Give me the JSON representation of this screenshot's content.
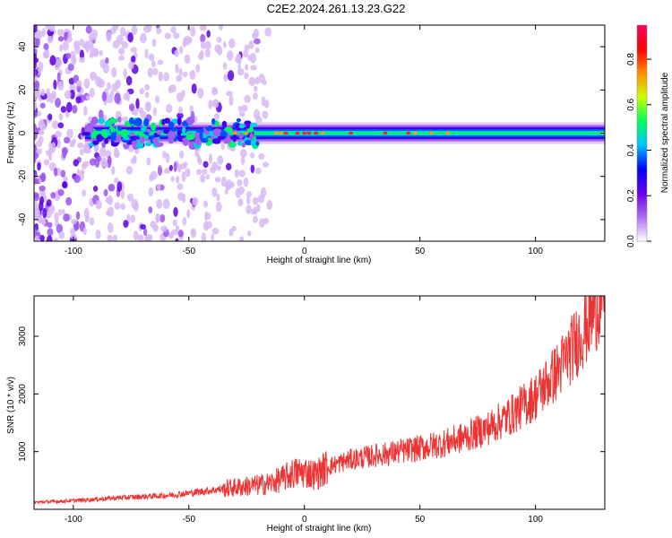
{
  "title": "C2E2.2024.261.13.23.G22",
  "chart_data": [
    {
      "type": "heatmap",
      "xlabel": "Height of straight line (km)",
      "ylabel": "Frequency (Hz)",
      "xlim": [
        -117,
        130
      ],
      "ylim": [
        -50,
        50
      ],
      "xticks": [
        -100,
        -50,
        0,
        50,
        100
      ],
      "yticks": [
        -40,
        -20,
        0,
        20,
        40
      ],
      "xtick_labels": [
        "-100",
        "-50",
        "0",
        "50",
        "100"
      ],
      "ytick_labels": [
        "-40",
        "-20",
        "0",
        "20",
        "40"
      ],
      "colorbar": {
        "label": "Normalized spectral amplitude",
        "range": [
          0,
          0.95
        ],
        "ticks": [
          0,
          0.2,
          0.4,
          0.6,
          0.8
        ],
        "tick_labels": [
          "0.0",
          "0.2",
          "0.4",
          "0.6",
          "0.8"
        ],
        "colormap": [
          "#ffffff",
          "#b06cf0",
          "#6a00e6",
          "#0000ff",
          "#00c0ff",
          "#00ff60",
          "#c8ff00",
          "#ff8c00",
          "#ff0000",
          "#ff0060"
        ]
      },
      "band_center_hz": 0,
      "band_halfwidth_hz": 5,
      "scatter_extent_km": [
        -117,
        -15
      ]
    },
    {
      "type": "line",
      "xlabel": "Height of straight line (km)",
      "ylabel": "SNR (10 * v/v)",
      "xlim": [
        -117,
        130
      ],
      "ylim": [
        0,
        3700
      ],
      "xticks": [
        -100,
        -50,
        0,
        50,
        100
      ],
      "yticks": [
        1000,
        2000,
        3000
      ],
      "xtick_labels": [
        "-100",
        "-50",
        "0",
        "50",
        "100"
      ],
      "ytick_labels": [
        "1000",
        "2000",
        "3000"
      ],
      "line_color": "#ee3333",
      "series": [
        {
          "x": [
            -117,
            -100,
            -80,
            -60,
            -50,
            -40,
            -30,
            -20,
            -15,
            -10,
            -5,
            0,
            5,
            10,
            20,
            30,
            40,
            50,
            60,
            70,
            80,
            90,
            100,
            110,
            120,
            125,
            130
          ],
          "values": [
            120,
            150,
            200,
            240,
            280,
            330,
            380,
            420,
            450,
            520,
            620,
            650,
            600,
            740,
            860,
            930,
            990,
            1060,
            1140,
            1260,
            1420,
            1650,
            1960,
            2420,
            3050,
            3400,
            3800
          ]
        }
      ]
    }
  ]
}
